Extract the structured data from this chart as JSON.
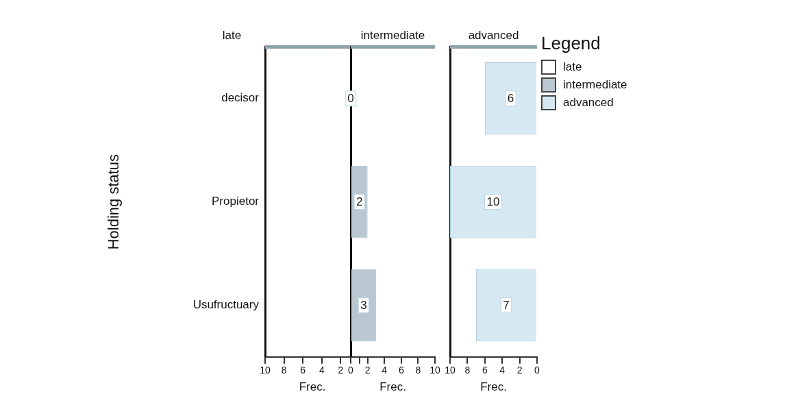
{
  "chart_data": [
    {
      "type": "bar",
      "orientation": "horizontal",
      "title": "late",
      "xlabel": "Frec.",
      "ylabel": "Holding status",
      "categories": [
        "decisor",
        "Propietor",
        "Usufructuary"
      ],
      "xlim": [
        10,
        0
      ],
      "xticks": [
        10,
        8,
        6,
        4,
        2,
        {
          "value": 0,
          "label": null
        }
      ],
      "grid": false,
      "legend": "right",
      "legend_title": "Legend",
      "series": [
        {
          "name": "late",
          "color": "#ffffff",
          "values": [
            0,
            0,
            0
          ]
        }
      ]
    },
    {
      "type": "bar",
      "orientation": "horizontal",
      "title": "intermediate",
      "xlabel": "Frec.",
      "categories": [
        null,
        null,
        null
      ],
      "xlim": [
        0,
        10
      ],
      "xticks": [
        0,
        2,
        4,
        6,
        8,
        10
      ],
      "grid": false,
      "legend": "right",
      "tick_labels": "x",
      "data_labels": true,
      "series": [
        {
          "name": "intermediate",
          "color": "#b9c7d0",
          "values": [
            0,
            2,
            3
          ]
        }
      ]
    },
    {
      "type": "bar",
      "orientation": "horizontal",
      "title": "advanced",
      "xlabel": "Frec.",
      "categories": [
        null,
        null,
        null
      ],
      "xlim": [
        10,
        0
      ],
      "xticks": [
        10,
        8,
        6,
        4,
        2,
        0
      ],
      "grid": false,
      "legend": "right",
      "tick_labels": "x",
      "data_labels": true,
      "series": [
        {
          "name": "advanced",
          "color": "#d6e8f2",
          "values": [
            6,
            10,
            7
          ]
        }
      ]
    }
  ]
}
